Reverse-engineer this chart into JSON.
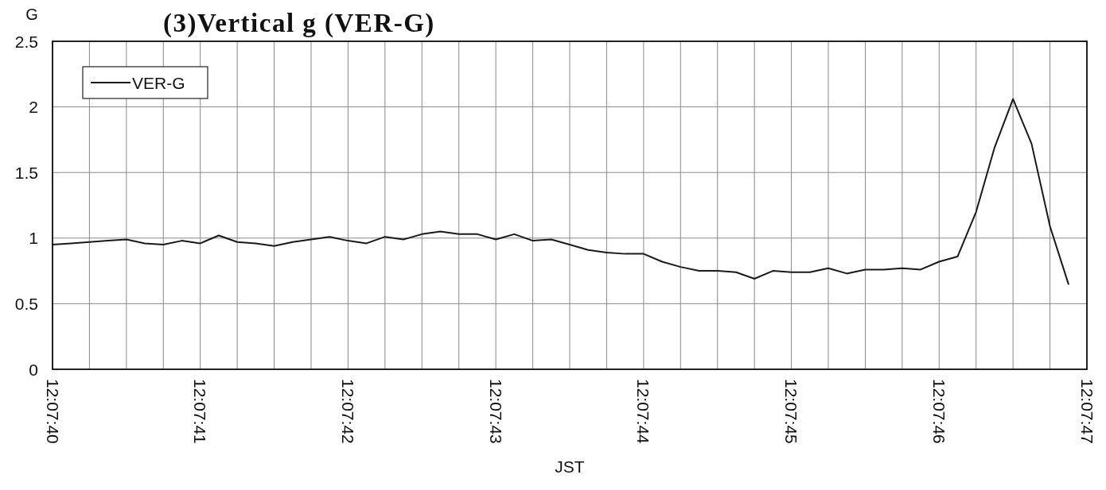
{
  "chart_data": {
    "type": "line",
    "title": "(3)Vertical g (VER-G)",
    "xlabel": "JST",
    "ylabel": "G",
    "x": [
      12.1277778,
      12.1278125,
      12.1278472,
      12.1278819,
      12.1279167,
      12.1279514,
      12.1279861,
      12.1280208,
      12.1280556,
      12.1280903,
      12.128125,
      12.1281597,
      12.1281944,
      12.1282292,
      12.1282639,
      12.1282986,
      12.1283333,
      12.1283681,
      12.1284028,
      12.1284375,
      12.1284722,
      12.1285069,
      12.1285417,
      12.1285764,
      12.1286111,
      12.1286458,
      12.1286806,
      12.1287153,
      12.12875,
      12.1287847,
      12.1288194,
      12.1288542,
      12.1288889,
      12.1289236,
      12.1289583,
      12.1289931,
      12.1290278,
      12.1290625,
      12.1290972,
      12.1291319,
      12.1291667,
      12.1292014,
      12.1292361,
      12.1292708,
      12.1293056,
      12.1293403,
      12.129375,
      12.1294097,
      12.1294444,
      12.1294792,
      12.1295139,
      12.1295486,
      12.1295833,
      12.1296181,
      12.1296528,
      12.1296875
    ],
    "series": [
      {
        "name": "VER-G",
        "color": "#1a1a1a",
        "values": [
          0.95,
          0.96,
          0.97,
          0.98,
          0.99,
          0.96,
          0.95,
          0.98,
          0.96,
          1.02,
          0.97,
          0.96,
          0.94,
          0.97,
          0.99,
          1.01,
          0.98,
          0.96,
          1.01,
          0.99,
          1.03,
          1.05,
          1.03,
          1.03,
          0.99,
          1.03,
          0.98,
          0.99,
          0.95,
          0.91,
          0.89,
          0.88,
          0.88,
          0.82,
          0.78,
          0.75,
          0.75,
          0.74,
          0.69,
          0.75,
          0.74,
          0.74,
          0.77,
          0.73,
          0.76,
          0.76,
          0.77,
          0.76,
          0.82,
          0.86,
          1.2,
          1.69,
          2.06,
          1.72,
          1.09,
          0.65
        ]
      }
    ],
    "xlim": [
      12.1277778,
      12.1297222
    ],
    "xticks": [
      {
        "value": 12.1277778,
        "label": "12:07:40"
      },
      {
        "value": 12.1278472,
        "label": null
      },
      {
        "value": 12.1279167,
        "label": null
      },
      {
        "value": 12.1279861,
        "label": null
      },
      {
        "value": 12.1280556,
        "label": "12:07:41"
      },
      {
        "value": 12.128125,
        "label": null
      },
      {
        "value": 12.1281944,
        "label": null
      },
      {
        "value": 12.1282639,
        "label": null
      },
      {
        "value": 12.1283333,
        "label": "12:07:42"
      },
      {
        "value": 12.1284028,
        "label": null
      },
      {
        "value": 12.1284722,
        "label": null
      },
      {
        "value": 12.1285417,
        "label": null
      },
      {
        "value": 12.1286111,
        "label": "12:07:43"
      },
      {
        "value": 12.1286806,
        "label": null
      },
      {
        "value": 12.12875,
        "label": null
      },
      {
        "value": 12.1288194,
        "label": null
      },
      {
        "value": 12.1288889,
        "label": "12:07:44"
      },
      {
        "value": 12.1289583,
        "label": null
      },
      {
        "value": 12.1290278,
        "label": null
      },
      {
        "value": 12.1290972,
        "label": null
      },
      {
        "value": 12.1291667,
        "label": "12:07:45"
      },
      {
        "value": 12.1292361,
        "label": null
      },
      {
        "value": 12.1293056,
        "label": null
      },
      {
        "value": 12.129375,
        "label": null
      },
      {
        "value": 12.1294444,
        "label": "12:07:46"
      },
      {
        "value": 12.1295139,
        "label": null
      },
      {
        "value": 12.1295833,
        "label": null
      },
      {
        "value": 12.1296528,
        "label": null
      },
      {
        "value": 12.1297222,
        "label": "12:07:47"
      }
    ],
    "ylim": [
      0,
      2.5
    ],
    "yticks": [
      0,
      0.5,
      1,
      1.5,
      2,
      2.5
    ],
    "grid": true,
    "legend": "top left"
  }
}
